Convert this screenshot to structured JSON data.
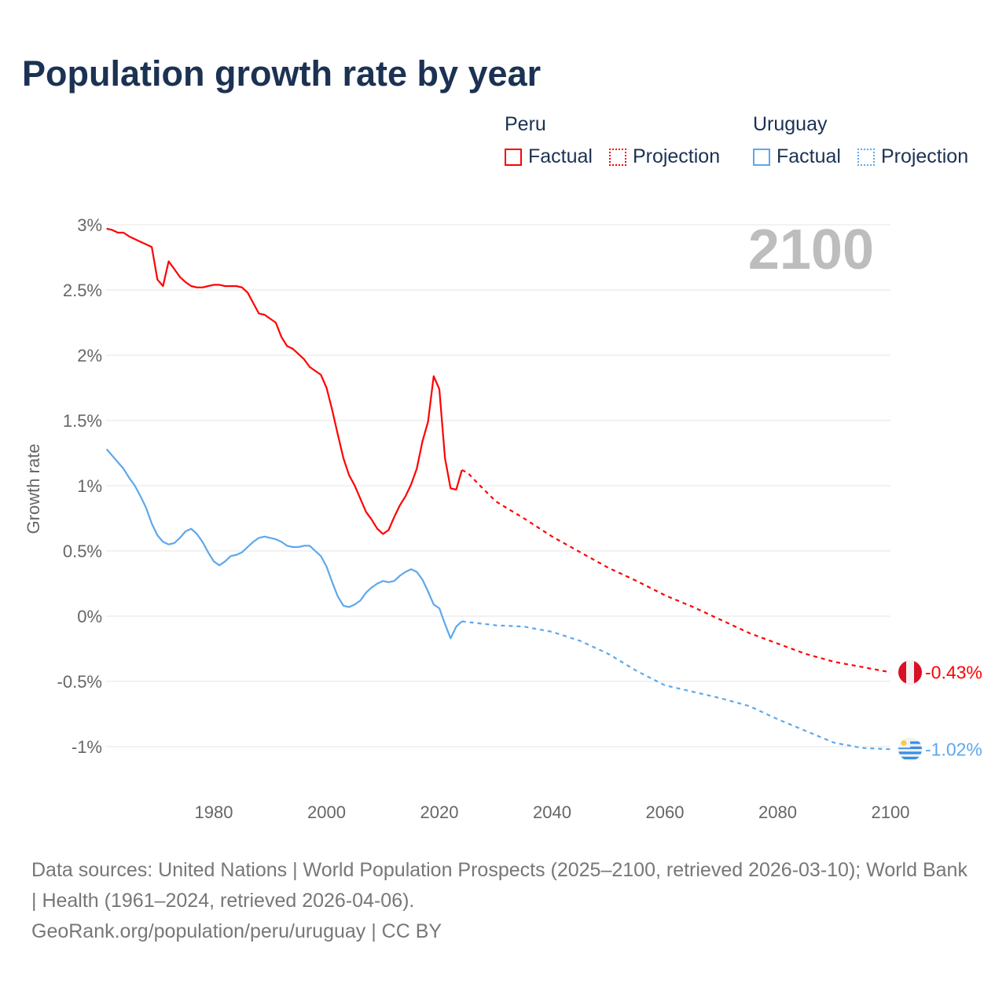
{
  "title": "Population growth rate by year",
  "legend": {
    "groups": [
      {
        "name": "Peru",
        "color": "#ff0000",
        "factual": "Factual",
        "projection": "Projection"
      },
      {
        "name": "Uruguay",
        "color": "#5da8ec",
        "factual": "Factual",
        "projection": "Projection"
      }
    ]
  },
  "year_label": "2100",
  "footer": {
    "sources": "Data sources: United Nations | World Population Prospects (2025–2100, retrieved 2026-03-10); World Bank | Health (1961–2024, retrieved 2026-04-06).",
    "credit": "GeoRank.org/population/peru/uruguay | CC BY"
  },
  "chart_data": {
    "type": "line",
    "title": "Population growth rate by year",
    "xlabel": "",
    "ylabel": "Growth rate",
    "xlim": [
      1961,
      2100
    ],
    "ylim": [
      -1.2,
      3.0
    ],
    "xticks": [
      1980,
      2000,
      2020,
      2040,
      2060,
      2080,
      2100
    ],
    "yticks": [
      {
        "v": 3,
        "label": "3%"
      },
      {
        "v": 2.5,
        "label": "2.5%"
      },
      {
        "v": 2,
        "label": "2%"
      },
      {
        "v": 1.5,
        "label": "1.5%"
      },
      {
        "v": 1,
        "label": "1%"
      },
      {
        "v": 0.5,
        "label": "0.5%"
      },
      {
        "v": 0,
        "label": "0%"
      },
      {
        "v": -0.5,
        "label": "-0.5%"
      },
      {
        "v": -1,
        "label": "-1%"
      }
    ],
    "grid": true,
    "series": [
      {
        "name": "Peru",
        "color": "#ff0000",
        "end_label": "-0.43%",
        "factual_start": 1961,
        "factual": [
          2.97,
          2.96,
          2.94,
          2.94,
          2.91,
          2.89,
          2.87,
          2.85,
          2.83,
          2.58,
          2.53,
          2.72,
          2.66,
          2.6,
          2.56,
          2.53,
          2.52,
          2.52,
          2.53,
          2.54,
          2.54,
          2.53,
          2.53,
          2.53,
          2.52,
          2.48,
          2.4,
          2.32,
          2.31,
          2.28,
          2.25,
          2.14,
          2.07,
          2.05,
          2.01,
          1.97,
          1.91,
          1.88,
          1.85,
          1.75,
          1.58,
          1.39,
          1.21,
          1.08,
          1.0,
          0.9,
          0.8,
          0.74,
          0.67,
          0.63,
          0.66,
          0.76,
          0.85,
          0.92,
          1.01,
          1.13,
          1.34,
          1.49,
          1.84,
          1.74,
          1.21,
          0.98,
          0.97,
          1.12
        ],
        "projection": [
          [
            2024,
            1.12
          ],
          [
            2025,
            1.1
          ],
          [
            2027,
            1.01
          ],
          [
            2030,
            0.88
          ],
          [
            2035,
            0.75
          ],
          [
            2040,
            0.61
          ],
          [
            2045,
            0.49
          ],
          [
            2050,
            0.37
          ],
          [
            2055,
            0.27
          ],
          [
            2060,
            0.16
          ],
          [
            2065,
            0.07
          ],
          [
            2070,
            -0.03
          ],
          [
            2075,
            -0.13
          ],
          [
            2080,
            -0.21
          ],
          [
            2085,
            -0.29
          ],
          [
            2090,
            -0.35
          ],
          [
            2095,
            -0.39
          ],
          [
            2100,
            -0.43
          ]
        ]
      },
      {
        "name": "Uruguay",
        "color": "#5da8ec",
        "end_label": "-1.02%",
        "factual_start": 1961,
        "factual": [
          1.28,
          1.23,
          1.18,
          1.13,
          1.06,
          1.0,
          0.92,
          0.83,
          0.71,
          0.62,
          0.57,
          0.55,
          0.56,
          0.6,
          0.65,
          0.67,
          0.63,
          0.57,
          0.49,
          0.42,
          0.39,
          0.42,
          0.46,
          0.47,
          0.49,
          0.53,
          0.57,
          0.6,
          0.61,
          0.6,
          0.59,
          0.57,
          0.54,
          0.53,
          0.53,
          0.54,
          0.54,
          0.5,
          0.46,
          0.38,
          0.26,
          0.15,
          0.08,
          0.07,
          0.09,
          0.12,
          0.18,
          0.22,
          0.25,
          0.27,
          0.26,
          0.27,
          0.31,
          0.34,
          0.36,
          0.34,
          0.28,
          0.19,
          0.09,
          0.06,
          -0.06,
          -0.17,
          -0.08,
          -0.04
        ],
        "projection": [
          [
            2024,
            -0.04
          ],
          [
            2030,
            -0.07
          ],
          [
            2035,
            -0.08
          ],
          [
            2040,
            -0.12
          ],
          [
            2045,
            -0.19
          ],
          [
            2050,
            -0.29
          ],
          [
            2055,
            -0.42
          ],
          [
            2060,
            -0.53
          ],
          [
            2065,
            -0.58
          ],
          [
            2070,
            -0.63
          ],
          [
            2075,
            -0.69
          ],
          [
            2080,
            -0.79
          ],
          [
            2085,
            -0.88
          ],
          [
            2090,
            -0.97
          ],
          [
            2095,
            -1.01
          ],
          [
            2100,
            -1.02
          ]
        ]
      }
    ]
  }
}
